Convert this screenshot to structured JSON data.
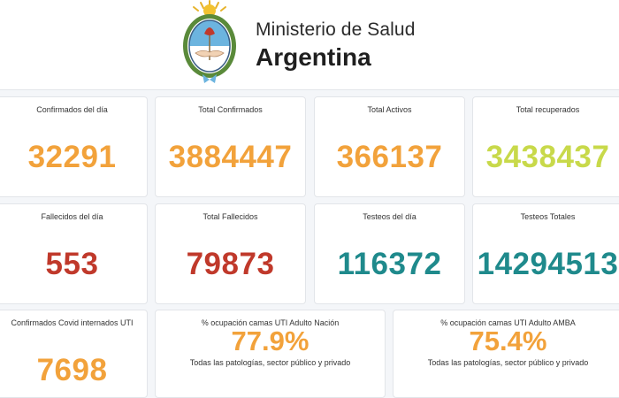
{
  "header": {
    "ministry": "Ministerio de Salud",
    "country": "Argentina",
    "emblem_icon": "argentina-coat-of-arms"
  },
  "colors": {
    "orange": "#f2a23b",
    "yellow_green": "#c8d94a",
    "red": "#c0392b",
    "teal": "#1f8a8c"
  },
  "cards": {
    "confirmados_dia": {
      "label": "Confirmados del día",
      "value": "32291"
    },
    "total_confirmados": {
      "label": "Total Confirmados",
      "value": "3884447"
    },
    "total_activos": {
      "label": "Total Activos",
      "value": "366137"
    },
    "total_recuperados": {
      "label": "Total recuperados",
      "value": "3438437"
    },
    "fallecidos_dia": {
      "label": "Fallecidos del día",
      "value": "553"
    },
    "total_fallecidos": {
      "label": "Total Fallecidos",
      "value": "79873"
    },
    "testeos_dia": {
      "label": "Testeos del día",
      "value": "116372"
    },
    "testeos_totales": {
      "label": "Testeos Totales",
      "value": "14294513"
    },
    "internados_uti": {
      "label": "Confirmados Covid internados UTI",
      "value": "7698"
    },
    "ocupacion_nacion": {
      "label": "% ocupación camas UTI Adulto Nación",
      "value": "77.9%",
      "note": "Todas las patologías, sector público y privado"
    },
    "ocupacion_amba": {
      "label": "% ocupación camas UTI Adulto AMBA",
      "value": "75.4%",
      "note": "Todas las patologías, sector público y privado"
    }
  }
}
